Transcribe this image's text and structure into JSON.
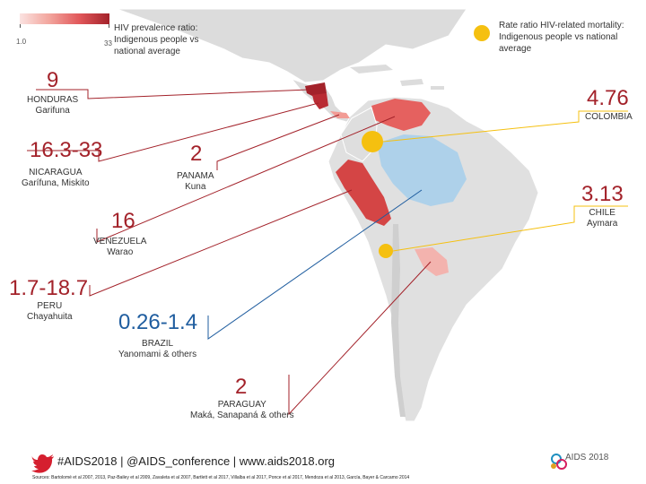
{
  "legend": {
    "prevalence_title_lines": [
      "HIV prevalence ratio:",
      "Indigenous people vs",
      "national average"
    ],
    "scale_min": "1.0",
    "scale_max": "33",
    "mortality_title_lines": [
      "Rate ratio HIV-related mortality:",
      "Indigenous people vs national",
      "average"
    ],
    "colors": {
      "scale_low": "#fbe3e1",
      "scale_high": "#a3222a",
      "mortality_dot": "#f5c010",
      "ratio_red": "#a3222a",
      "ratio_blue": "#1f5d9f"
    }
  },
  "callouts": {
    "honduras": {
      "value": "9",
      "country": "HONDURAS",
      "people": "Garifuna"
    },
    "nicaragua": {
      "value": "16.3-33",
      "country": "NICARAGUA",
      "people": "Garífuna, Miskito"
    },
    "venezuela": {
      "value": "16",
      "country": "VENEZUELA",
      "people": "Warao"
    },
    "peru": {
      "value": "1.7-18.7",
      "country": "PERU",
      "people": "Chayahuita"
    },
    "brazil": {
      "value": "0.26-1.4",
      "country": "BRAZIL",
      "people": "Yanomami & others"
    },
    "paraguay": {
      "value": "2",
      "country": "PARAGUAY",
      "people": "Maká, Sanapaná & others"
    },
    "panama": {
      "value": "2",
      "country": "PANAMA",
      "people": "Kuna"
    },
    "colombia": {
      "value": "4.76",
      "country": "COLOMBIA"
    },
    "chile": {
      "value": "3.13",
      "country": "CHILE",
      "people": "Aymara"
    }
  },
  "footer": {
    "hashtags": "#AIDS2018 | @AIDS_conference | www.aids2018.org",
    "sources": "Sources: Bartolomé et al 2007, 2013, Paz-Bailey et al 2009, Zavaleta et al 2007, Bartlett et al 2017, Villalba et al 2017, Ponce et al 2017, Mendoza et al 2013, García, Bayer & Carcamo 2014",
    "logo_text": "AIDS 2018",
    "icons": [
      "twitter-bird-icon",
      "aids-conference-logo-icon"
    ]
  }
}
